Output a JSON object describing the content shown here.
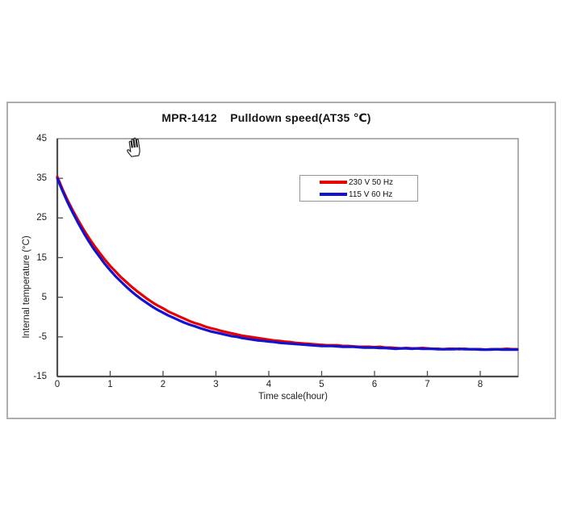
{
  "pointer": {
    "cursor_icon": "open-hand"
  },
  "frame": {
    "border_color": "#aeaeae",
    "background": "#ffffff"
  },
  "axes_style": {
    "frame_color": "#8f8f8f",
    "axis_color": "#4d4d4d",
    "text_color": "#1e1e1e"
  },
  "chart_data": {
    "type": "line",
    "title": "MPR-1412    Pulldown speed(AT35 ℃)",
    "xlabel": "Time scale(hour)",
    "ylabel": "Internal temperature (°C)",
    "xlim": [
      0,
      8.7
    ],
    "ylim": [
      -15,
      45
    ],
    "xticks": [
      0,
      1,
      2,
      3,
      4,
      5,
      6,
      7,
      8
    ],
    "yticks": [
      45,
      35,
      25,
      15,
      5,
      -5,
      -15
    ],
    "grid": false,
    "legend_position": "upper-middle-right",
    "series": [
      {
        "name": "230 V 50 Hz",
        "color": "#e60000",
        "x": [
          0,
          0.1,
          0.2,
          0.3,
          0.4,
          0.5,
          0.6,
          0.7,
          0.8,
          0.9,
          1,
          1.1,
          1.2,
          1.3,
          1.4,
          1.5,
          1.6,
          1.7,
          1.8,
          1.9,
          2,
          2.1,
          2.2,
          2.3,
          2.4,
          2.5,
          2.6,
          2.7,
          2.8,
          2.9,
          3,
          3.1,
          3.2,
          3.3,
          3.4,
          3.5,
          3.6,
          3.7,
          3.8,
          3.9,
          4,
          4.1,
          4.2,
          4.3,
          4.4,
          4.5,
          4.6,
          4.7,
          4.8,
          4.9,
          5,
          5.1,
          5.2,
          5.3,
          5.4,
          5.5,
          5.6,
          5.7,
          5.8,
          5.9,
          6,
          6.1,
          6.2,
          6.3,
          6.4,
          6.5,
          6.6,
          6.7,
          6.8,
          6.9,
          7,
          7.1,
          7.2,
          7.3,
          7.4,
          7.5,
          7.6,
          7.7,
          7.8,
          7.9,
          8,
          8.1,
          8.2,
          8.3,
          8.4,
          8.5,
          8.6,
          8.7
        ],
        "y": [
          35.4,
          32.2,
          29.3,
          26.7,
          24.3,
          22.0,
          19.9,
          18.0,
          16.2,
          14.5,
          12.9,
          11.5,
          10.1,
          8.9,
          7.7,
          6.6,
          5.6,
          4.6,
          3.7,
          2.9,
          2.2,
          1.4,
          0.8,
          0.2,
          -0.4,
          -1.0,
          -1.5,
          -1.9,
          -2.4,
          -2.8,
          -3.1,
          -3.5,
          -3.8,
          -4.1,
          -4.4,
          -4.7,
          -4.9,
          -5.1,
          -5.3,
          -5.5,
          -5.7,
          -5.9,
          -6.0,
          -6.2,
          -6.3,
          -6.5,
          -6.6,
          -6.7,
          -6.8,
          -6.9,
          -7.0,
          -7.1,
          -7.1,
          -7.1,
          -7.3,
          -7.3,
          -7.4,
          -7.5,
          -7.5,
          -7.5,
          -7.6,
          -7.5,
          -7.7,
          -7.7,
          -7.8,
          -7.9,
          -7.8,
          -7.9,
          -7.9,
          -7.8,
          -7.9,
          -8.0,
          -8.0,
          -8.1,
          -8.0,
          -8.0,
          -8.1,
          -8.0,
          -8.1,
          -8.1,
          -8.1,
          -8.2,
          -8.1,
          -8.1,
          -8.1,
          -8.0,
          -8.1,
          -8.1
        ]
      },
      {
        "name": "115 V 60 Hz",
        "color": "#1212d0",
        "x": [
          0,
          0.1,
          0.2,
          0.3,
          0.4,
          0.5,
          0.6,
          0.7,
          0.8,
          0.9,
          1,
          1.1,
          1.2,
          1.3,
          1.4,
          1.5,
          1.6,
          1.7,
          1.8,
          1.9,
          2,
          2.1,
          2.2,
          2.3,
          2.4,
          2.5,
          2.6,
          2.7,
          2.8,
          2.9,
          3,
          3.1,
          3.2,
          3.3,
          3.4,
          3.5,
          3.6,
          3.7,
          3.8,
          3.9,
          4,
          4.1,
          4.2,
          4.3,
          4.4,
          4.5,
          4.6,
          4.7,
          4.8,
          4.9,
          5,
          5.1,
          5.2,
          5.3,
          5.4,
          5.5,
          5.6,
          5.7,
          5.8,
          5.9,
          6,
          6.1,
          6.2,
          6.3,
          6.4,
          6.5,
          6.6,
          6.7,
          6.8,
          6.9,
          7,
          7.1,
          7.2,
          7.3,
          7.4,
          7.5,
          7.6,
          7.7,
          7.8,
          7.9,
          8,
          8.1,
          8.2,
          8.3,
          8.4,
          8.5,
          8.6,
          8.7
        ],
        "y": [
          35.0,
          31.8,
          28.8,
          26.1,
          23.6,
          21.2,
          19.0,
          17.0,
          15.2,
          13.4,
          11.8,
          10.3,
          9.0,
          7.7,
          6.5,
          5.4,
          4.4,
          3.5,
          2.6,
          1.8,
          1.1,
          0.4,
          -0.2,
          -0.8,
          -1.4,
          -1.9,
          -2.3,
          -2.8,
          -3.2,
          -3.6,
          -3.9,
          -4.2,
          -4.5,
          -4.8,
          -5.0,
          -5.3,
          -5.5,
          -5.7,
          -5.9,
          -6.0,
          -6.2,
          -6.3,
          -6.5,
          -6.6,
          -6.7,
          -6.8,
          -6.9,
          -7.0,
          -7.1,
          -7.2,
          -7.3,
          -7.3,
          -7.3,
          -7.4,
          -7.5,
          -7.5,
          -7.5,
          -7.6,
          -7.7,
          -7.7,
          -7.7,
          -7.8,
          -7.8,
          -7.9,
          -8.0,
          -7.9,
          -7.9,
          -8.0,
          -7.9,
          -8.0,
          -8.0,
          -8.0,
          -8.1,
          -8.1,
          -8.1,
          -8.1,
          -8.0,
          -8.1,
          -8.1,
          -8.1,
          -8.2,
          -8.2,
          -8.2,
          -8.1,
          -8.2,
          -8.2,
          -8.2,
          -8.2
        ]
      }
    ]
  }
}
